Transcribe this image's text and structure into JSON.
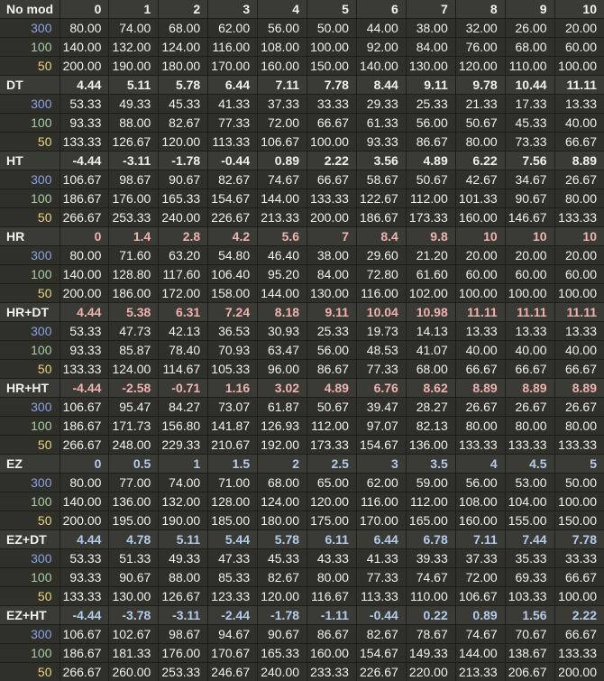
{
  "colors": {
    "header_row_background": "#3b3b35",
    "data_row_background": "#30302b",
    "grid_line": "#1e1e1a",
    "value_text": "#f2f1ec",
    "row_label_300": "#8ba1e4",
    "row_label_100": "#a6cfa6",
    "row_label_50": "#e9d57e",
    "hr_section_values": "#f0b1b1",
    "ez_section_values": "#b3cbec"
  },
  "chart_data": {
    "type": "table",
    "title": "osu! hit window / difficulty table per mod (OD columns 0-10, hit windows for 300/100/50)",
    "columns": [
      "0",
      "1",
      "2",
      "3",
      "4",
      "5",
      "6",
      "7",
      "8",
      "9",
      "10"
    ],
    "sections": [
      {
        "label": "No mod",
        "header_color": "white",
        "header_values": [
          "0",
          "1",
          "2",
          "3",
          "4",
          "5",
          "6",
          "7",
          "8",
          "9",
          "10"
        ],
        "rows": [
          {
            "label": "300",
            "values": [
              "80.00",
              "74.00",
              "68.00",
              "62.00",
              "56.00",
              "50.00",
              "44.00",
              "38.00",
              "32.00",
              "26.00",
              "20.00"
            ]
          },
          {
            "label": "100",
            "values": [
              "140.00",
              "132.00",
              "124.00",
              "116.00",
              "108.00",
              "100.00",
              "92.00",
              "84.00",
              "76.00",
              "68.00",
              "60.00"
            ]
          },
          {
            "label": "50",
            "values": [
              "200.00",
              "190.00",
              "180.00",
              "170.00",
              "160.00",
              "150.00",
              "140.00",
              "130.00",
              "120.00",
              "110.00",
              "100.00"
            ]
          }
        ]
      },
      {
        "label": "DT",
        "header_color": "white",
        "header_values": [
          "4.44",
          "5.11",
          "5.78",
          "6.44",
          "7.11",
          "7.78",
          "8.44",
          "9.11",
          "9.78",
          "10.44",
          "11.11"
        ],
        "rows": [
          {
            "label": "300",
            "values": [
              "53.33",
              "49.33",
              "45.33",
              "41.33",
              "37.33",
              "33.33",
              "29.33",
              "25.33",
              "21.33",
              "17.33",
              "13.33"
            ]
          },
          {
            "label": "100",
            "values": [
              "93.33",
              "88.00",
              "82.67",
              "77.33",
              "72.00",
              "66.67",
              "61.33",
              "56.00",
              "50.67",
              "45.33",
              "40.00"
            ]
          },
          {
            "label": "50",
            "values": [
              "133.33",
              "126.67",
              "120.00",
              "113.33",
              "106.67",
              "100.00",
              "93.33",
              "86.67",
              "80.00",
              "73.33",
              "66.67"
            ]
          }
        ]
      },
      {
        "label": "HT",
        "header_color": "white",
        "header_values": [
          "-4.44",
          "-3.11",
          "-1.78",
          "-0.44",
          "0.89",
          "2.22",
          "3.56",
          "4.89",
          "6.22",
          "7.56",
          "8.89"
        ],
        "rows": [
          {
            "label": "300",
            "values": [
              "106.67",
              "98.67",
              "90.67",
              "82.67",
              "74.67",
              "66.67",
              "58.67",
              "50.67",
              "42.67",
              "34.67",
              "26.67"
            ]
          },
          {
            "label": "100",
            "values": [
              "186.67",
              "176.00",
              "165.33",
              "154.67",
              "144.00",
              "133.33",
              "122.67",
              "112.00",
              "101.33",
              "90.67",
              "80.00"
            ]
          },
          {
            "label": "50",
            "values": [
              "266.67",
              "253.33",
              "240.00",
              "226.67",
              "213.33",
              "200.00",
              "186.67",
              "173.33",
              "160.00",
              "146.67",
              "133.33"
            ]
          }
        ]
      },
      {
        "label": "HR",
        "header_color": "pink",
        "header_values": [
          "0",
          "1.4",
          "2.8",
          "4.2",
          "5.6",
          "7",
          "8.4",
          "9.8",
          "10",
          "10",
          "10"
        ],
        "rows": [
          {
            "label": "300",
            "values": [
              "80.00",
              "71.60",
              "63.20",
              "54.80",
              "46.40",
              "38.00",
              "29.60",
              "21.20",
              "20.00",
              "20.00",
              "20.00"
            ]
          },
          {
            "label": "100",
            "values": [
              "140.00",
              "128.80",
              "117.60",
              "106.40",
              "95.20",
              "84.00",
              "72.80",
              "61.60",
              "60.00",
              "60.00",
              "60.00"
            ]
          },
          {
            "label": "50",
            "values": [
              "200.00",
              "186.00",
              "172.00",
              "158.00",
              "144.00",
              "130.00",
              "116.00",
              "102.00",
              "100.00",
              "100.00",
              "100.00"
            ]
          }
        ]
      },
      {
        "label": "HR+DT",
        "header_color": "pink",
        "header_values": [
          "4.44",
          "5.38",
          "6.31",
          "7.24",
          "8.18",
          "9.11",
          "10.04",
          "10.98",
          "11.11",
          "11.11",
          "11.11"
        ],
        "rows": [
          {
            "label": "300",
            "values": [
              "53.33",
              "47.73",
              "42.13",
              "36.53",
              "30.93",
              "25.33",
              "19.73",
              "14.13",
              "13.33",
              "13.33",
              "13.33"
            ]
          },
          {
            "label": "100",
            "values": [
              "93.33",
              "85.87",
              "78.40",
              "70.93",
              "63.47",
              "56.00",
              "48.53",
              "41.07",
              "40.00",
              "40.00",
              "40.00"
            ]
          },
          {
            "label": "50",
            "values": [
              "133.33",
              "124.00",
              "114.67",
              "105.33",
              "96.00",
              "86.67",
              "77.33",
              "68.00",
              "66.67",
              "66.67",
              "66.67"
            ]
          }
        ]
      },
      {
        "label": "HR+HT",
        "header_color": "pink",
        "header_values": [
          "-4.44",
          "-2.58",
          "-0.71",
          "1.16",
          "3.02",
          "4.89",
          "6.76",
          "8.62",
          "8.89",
          "8.89",
          "8.89"
        ],
        "rows": [
          {
            "label": "300",
            "values": [
              "106.67",
              "95.47",
              "84.27",
              "73.07",
              "61.87",
              "50.67",
              "39.47",
              "28.27",
              "26.67",
              "26.67",
              "26.67"
            ]
          },
          {
            "label": "100",
            "values": [
              "186.67",
              "171.73",
              "156.80",
              "141.87",
              "126.93",
              "112.00",
              "97.07",
              "82.13",
              "80.00",
              "80.00",
              "80.00"
            ]
          },
          {
            "label": "50",
            "values": [
              "266.67",
              "248.00",
              "229.33",
              "210.67",
              "192.00",
              "173.33",
              "154.67",
              "136.00",
              "133.33",
              "133.33",
              "133.33"
            ]
          }
        ]
      },
      {
        "label": "EZ",
        "header_color": "blue",
        "header_values": [
          "0",
          "0.5",
          "1",
          "1.5",
          "2",
          "2.5",
          "3",
          "3.5",
          "4",
          "4.5",
          "5"
        ],
        "rows": [
          {
            "label": "300",
            "values": [
              "80.00",
              "77.00",
              "74.00",
              "71.00",
              "68.00",
              "65.00",
              "62.00",
              "59.00",
              "56.00",
              "53.00",
              "50.00"
            ]
          },
          {
            "label": "100",
            "values": [
              "140.00",
              "136.00",
              "132.00",
              "128.00",
              "124.00",
              "120.00",
              "116.00",
              "112.00",
              "108.00",
              "104.00",
              "100.00"
            ]
          },
          {
            "label": "50",
            "values": [
              "200.00",
              "195.00",
              "190.00",
              "185.00",
              "180.00",
              "175.00",
              "170.00",
              "165.00",
              "160.00",
              "155.00",
              "150.00"
            ]
          }
        ]
      },
      {
        "label": "EZ+DT",
        "header_color": "blue",
        "header_values": [
          "4.44",
          "4.78",
          "5.11",
          "5.44",
          "5.78",
          "6.11",
          "6.44",
          "6.78",
          "7.11",
          "7.44",
          "7.78"
        ],
        "rows": [
          {
            "label": "300",
            "values": [
              "53.33",
              "51.33",
              "49.33",
              "47.33",
              "45.33",
              "43.33",
              "41.33",
              "39.33",
              "37.33",
              "35.33",
              "33.33"
            ]
          },
          {
            "label": "100",
            "values": [
              "93.33",
              "90.67",
              "88.00",
              "85.33",
              "82.67",
              "80.00",
              "77.33",
              "74.67",
              "72.00",
              "69.33",
              "66.67"
            ]
          },
          {
            "label": "50",
            "values": [
              "133.33",
              "130.00",
              "126.67",
              "123.33",
              "120.00",
              "116.67",
              "113.33",
              "110.00",
              "106.67",
              "103.33",
              "100.00"
            ]
          }
        ]
      },
      {
        "label": "EZ+HT",
        "header_color": "blue",
        "header_values": [
          "-4.44",
          "-3.78",
          "-3.11",
          "-2.44",
          "-1.78",
          "-1.11",
          "-0.44",
          "0.22",
          "0.89",
          "1.56",
          "2.22"
        ],
        "rows": [
          {
            "label": "300",
            "values": [
              "106.67",
              "102.67",
              "98.67",
              "94.67",
              "90.67",
              "86.67",
              "82.67",
              "78.67",
              "74.67",
              "70.67",
              "66.67"
            ]
          },
          {
            "label": "100",
            "values": [
              "186.67",
              "181.33",
              "176.00",
              "170.67",
              "165.33",
              "160.00",
              "154.67",
              "149.33",
              "144.00",
              "138.67",
              "133.33"
            ]
          },
          {
            "label": "50",
            "values": [
              "266.67",
              "260.00",
              "253.33",
              "246.67",
              "240.00",
              "233.33",
              "226.67",
              "220.00",
              "213.33",
              "206.67",
              "200.00"
            ]
          }
        ]
      }
    ]
  }
}
